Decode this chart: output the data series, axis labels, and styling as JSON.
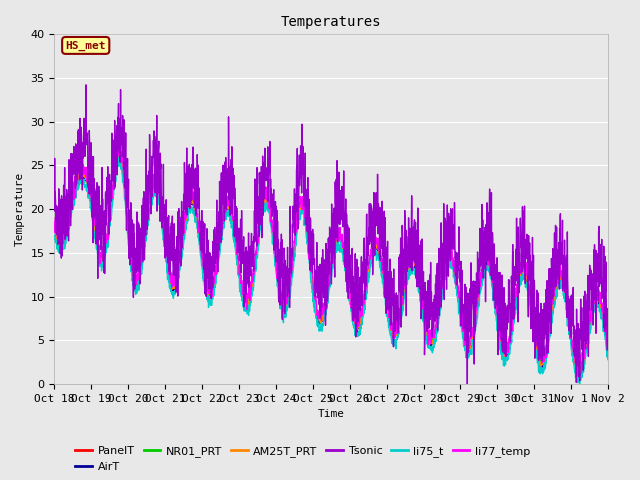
{
  "title": "Temperatures",
  "xlabel": "Time",
  "ylabel": "Temperature",
  "ylim": [
    0,
    40
  ],
  "background_color": "#e8e8e8",
  "annotation_text": "HS_met",
  "annotation_bg": "#ffff99",
  "annotation_border": "#8b0000",
  "series": [
    {
      "label": "PanelT",
      "color": "#ff0000"
    },
    {
      "label": "AirT",
      "color": "#000099"
    },
    {
      "label": "NR01_PRT",
      "color": "#00cc00"
    },
    {
      "label": "AM25T_PRT",
      "color": "#ff8800"
    },
    {
      "label": "Tsonic",
      "color": "#9900cc"
    },
    {
      "label": "li75_t",
      "color": "#00cccc"
    },
    {
      "label": "li77_temp",
      "color": "#ff00ff"
    }
  ],
  "xtick_labels": [
    "Oct 18",
    "Oct 19",
    "Oct 20",
    "Oct 21",
    "Oct 22",
    "Oct 23",
    "Oct 24",
    "Oct 25",
    "Oct 26",
    "Oct 27",
    "Oct 28",
    "Oct 29",
    "Oct 30",
    "Oct 31",
    "Nov 1",
    "Nov 2"
  ],
  "grid_color": "#ffffff",
  "title_fontsize": 10,
  "label_fontsize": 8,
  "tick_fontsize": 8
}
